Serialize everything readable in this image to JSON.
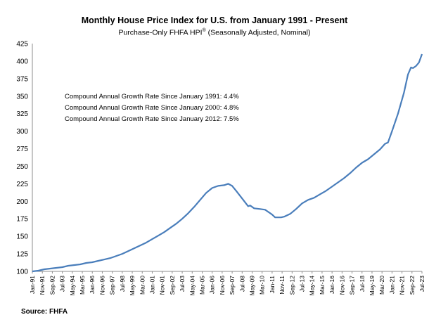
{
  "chart_data": {
    "type": "line",
    "title": "Monthly House Price Index for U.S. from January 1991 - Present",
    "subtitle_main": "Purchase-Only FHFA HPI",
    "subtitle_sup": "®",
    "subtitle_tail": " (Seasonally Adjusted, Nominal)",
    "xlabel": "",
    "ylabel": "",
    "ylim": [
      100,
      425
    ],
    "yticks": [
      100,
      125,
      150,
      175,
      200,
      225,
      250,
      275,
      300,
      325,
      350,
      375,
      400,
      425
    ],
    "xlim": [
      "1991-01",
      "2023-07"
    ],
    "xticks": [
      "Jan-91",
      "Nov-91",
      "Sep-92",
      "Jul-93",
      "May-94",
      "Mar-95",
      "Jan-96",
      "Nov-96",
      "Sep-97",
      "Jul-98",
      "May-99",
      "Mar-00",
      "Jan-01",
      "Nov-01",
      "Sep-02",
      "Jul-03",
      "May-04",
      "Mar-05",
      "Jan-06",
      "Nov-06",
      "Sep-07",
      "Jul-08",
      "May-09",
      "Mar-10",
      "Jan-11",
      "Nov-11",
      "Sep-12",
      "Jul-13",
      "May-14",
      "Mar-15",
      "Jan-16",
      "Nov-16",
      "Sep-17",
      "Jul-18",
      "May-19",
      "Mar-20",
      "Jan-21",
      "Nov-21",
      "Sep-22",
      "Jul-23"
    ],
    "grid": false,
    "annotations": [
      {
        "label": "Compound Annual Growth Rate Since January 1991:",
        "value": "4.4%"
      },
      {
        "label": "Compound Annual Growth Rate Since January 2000:",
        "value": "4.8%"
      },
      {
        "label": "Compound Annual Growth Rate Since January 2012:",
        "value": "7.5%"
      }
    ],
    "series": [
      {
        "color": "#4a7ebb",
        "points": [
          [
            "1991-01",
            100
          ],
          [
            "1991-07",
            101
          ],
          [
            "1992-01",
            103
          ],
          [
            "1992-07",
            104
          ],
          [
            "1993-01",
            105
          ],
          [
            "1993-07",
            106
          ],
          [
            "1994-01",
            108
          ],
          [
            "1994-07",
            109
          ],
          [
            "1995-01",
            110
          ],
          [
            "1995-07",
            112
          ],
          [
            "1996-01",
            113
          ],
          [
            "1996-07",
            115
          ],
          [
            "1997-01",
            117
          ],
          [
            "1997-07",
            119
          ],
          [
            "1998-01",
            122
          ],
          [
            "1998-07",
            125
          ],
          [
            "1999-01",
            129
          ],
          [
            "1999-07",
            133
          ],
          [
            "2000-01",
            137
          ],
          [
            "2000-07",
            141
          ],
          [
            "2001-01",
            146
          ],
          [
            "2001-07",
            151
          ],
          [
            "2002-01",
            156
          ],
          [
            "2002-07",
            162
          ],
          [
            "2003-01",
            168
          ],
          [
            "2003-07",
            175
          ],
          [
            "2004-01",
            183
          ],
          [
            "2004-07",
            192
          ],
          [
            "2005-01",
            202
          ],
          [
            "2005-07",
            212
          ],
          [
            "2006-01",
            219
          ],
          [
            "2006-07",
            222
          ],
          [
            "2007-01",
            223
          ],
          [
            "2007-05",
            225
          ],
          [
            "2007-09",
            222
          ],
          [
            "2008-01",
            215
          ],
          [
            "2008-07",
            204
          ],
          [
            "2009-01",
            193
          ],
          [
            "2009-03",
            194
          ],
          [
            "2009-07",
            190
          ],
          [
            "2010-01",
            189
          ],
          [
            "2010-06",
            188
          ],
          [
            "2011-01",
            181
          ],
          [
            "2011-04",
            177
          ],
          [
            "2011-10",
            177
          ],
          [
            "2012-01",
            178
          ],
          [
            "2012-07",
            182
          ],
          [
            "2013-01",
            189
          ],
          [
            "2013-07",
            197
          ],
          [
            "2014-01",
            202
          ],
          [
            "2014-07",
            205
          ],
          [
            "2015-01",
            210
          ],
          [
            "2015-07",
            215
          ],
          [
            "2016-01",
            221
          ],
          [
            "2016-07",
            227
          ],
          [
            "2017-01",
            233
          ],
          [
            "2017-07",
            240
          ],
          [
            "2018-01",
            248
          ],
          [
            "2018-07",
            255
          ],
          [
            "2019-01",
            260
          ],
          [
            "2019-07",
            267
          ],
          [
            "2020-01",
            274
          ],
          [
            "2020-06",
            282
          ],
          [
            "2020-09",
            284
          ],
          [
            "2021-01",
            300
          ],
          [
            "2021-07",
            325
          ],
          [
            "2022-01",
            355
          ],
          [
            "2022-05",
            381
          ],
          [
            "2022-08",
            391
          ],
          [
            "2022-10",
            390
          ],
          [
            "2023-01",
            393
          ],
          [
            "2023-04",
            398
          ],
          [
            "2023-07",
            410
          ]
        ]
      }
    ]
  },
  "source": "Source: FHFA"
}
